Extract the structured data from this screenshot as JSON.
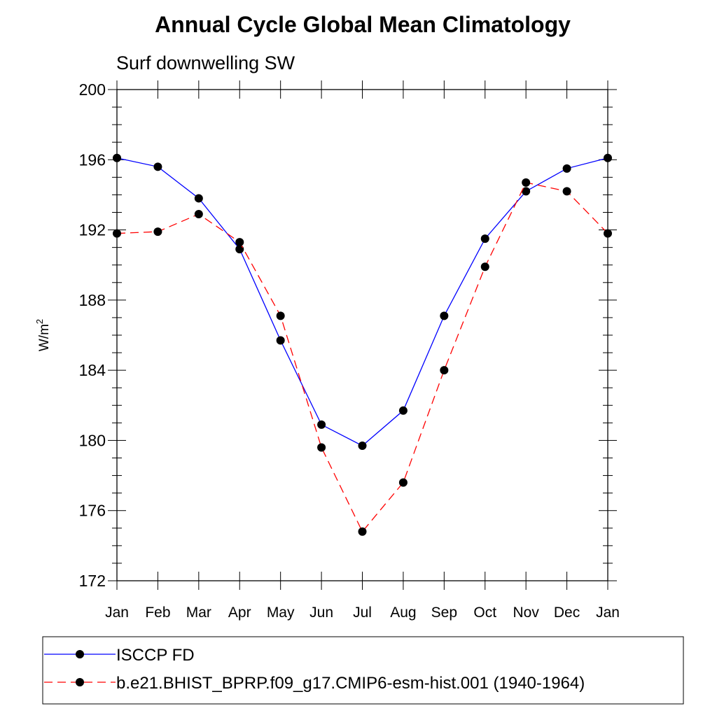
{
  "chart_data": {
    "type": "line",
    "title": "Annual Cycle Global Mean Climatology",
    "subtitle": "Surf downwelling SW",
    "ylabel": "W/m",
    "ylabel_sup": "2",
    "xlabel": "",
    "categories": [
      "Jan",
      "Feb",
      "Mar",
      "Apr",
      "May",
      "Jun",
      "Jul",
      "Aug",
      "Sep",
      "Oct",
      "Nov",
      "Dec",
      "Jan"
    ],
    "ylim": [
      172,
      200
    ],
    "yticks": [
      172,
      176,
      180,
      184,
      188,
      192,
      196,
      200
    ],
    "ytick_labels": [
      "172",
      "176",
      "180",
      "184",
      "188",
      "192",
      "196",
      "200"
    ],
    "grid": false,
    "legend_position": "bottom",
    "series": [
      {
        "name": "ISCCP FD",
        "color": "#0000ff",
        "dash": "solid",
        "marker": "filled-circle",
        "values": [
          196.1,
          195.6,
          193.8,
          190.9,
          185.7,
          180.9,
          179.7,
          181.7,
          187.1,
          191.5,
          194.2,
          195.5,
          196.1
        ]
      },
      {
        "name": "b.e21.BHIST_BPRP.f09_g17.CMIP6-esm-hist.001 (1940-1964)",
        "color": "#ff0000",
        "dash": "dashed",
        "marker": "filled-circle",
        "values": [
          191.8,
          191.9,
          192.9,
          191.3,
          187.1,
          179.6,
          174.8,
          177.6,
          184.0,
          189.9,
          194.7,
          194.2,
          191.8
        ]
      }
    ]
  }
}
